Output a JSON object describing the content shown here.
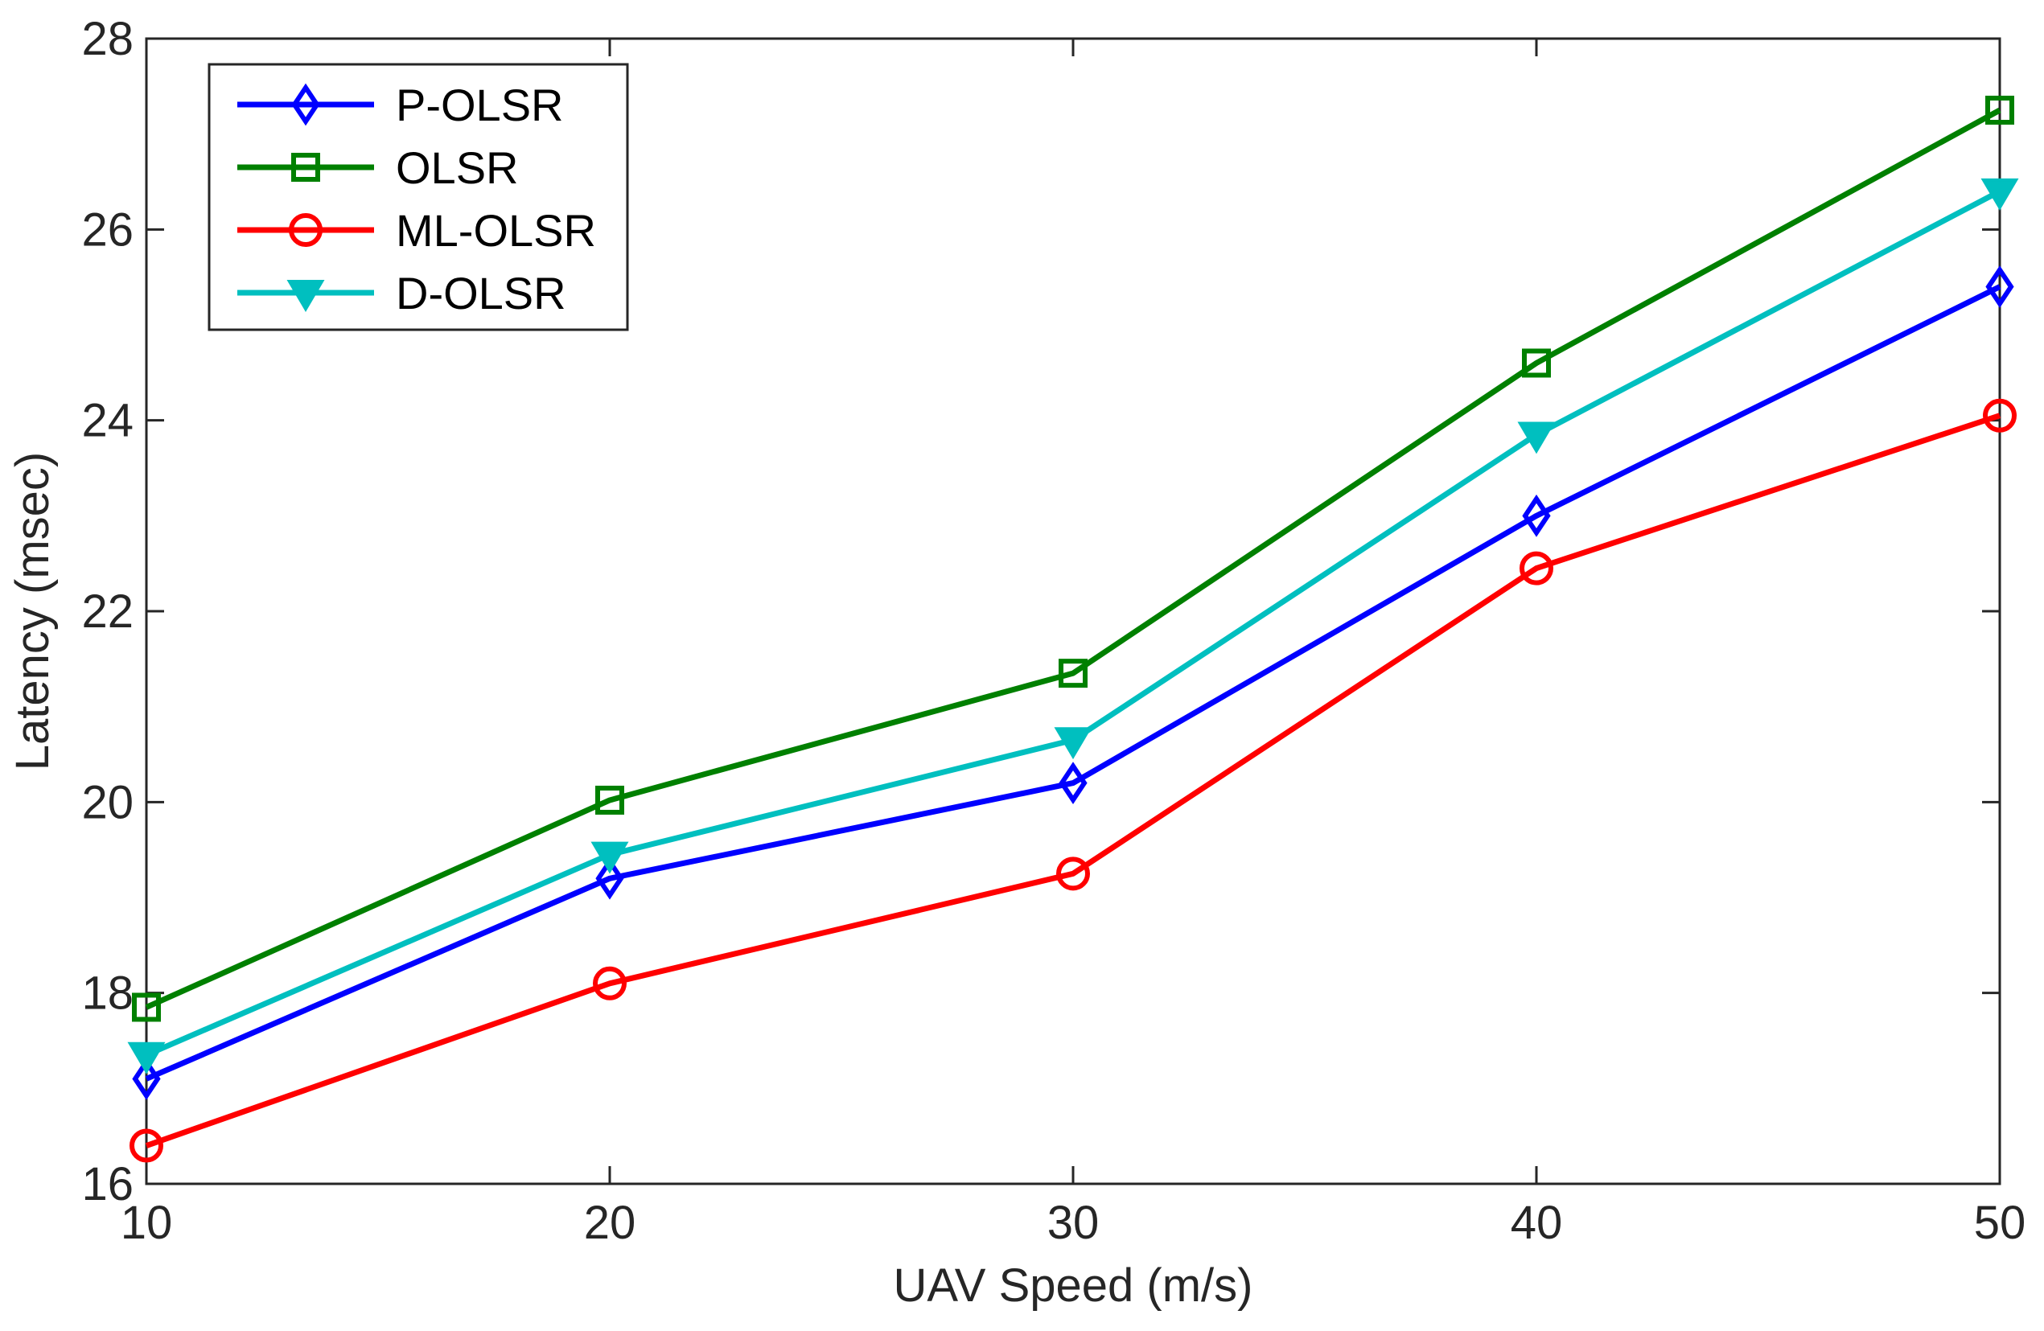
{
  "chart_data": {
    "type": "line",
    "title": "",
    "xlabel": "UAV Speed (m/s)",
    "ylabel": "Latency (msec)",
    "x": [
      10,
      20,
      30,
      40,
      50
    ],
    "xlim": [
      10,
      50
    ],
    "ylim": [
      16,
      28
    ],
    "xticks": [
      "10",
      "20",
      "30",
      "40",
      "50"
    ],
    "yticks": [
      "16",
      "18",
      "20",
      "22",
      "24",
      "26",
      "28"
    ],
    "grid": false,
    "legend_position": "top-left",
    "series": [
      {
        "name": "P-OLSR",
        "color": "#0000ff",
        "marker": "diamond",
        "values": [
          17.1,
          19.2,
          20.2,
          23.0,
          25.4
        ]
      },
      {
        "name": "OLSR",
        "color": "#008000",
        "marker": "square",
        "values": [
          17.85,
          20.02,
          21.35,
          24.6,
          27.25
        ]
      },
      {
        "name": "ML-OLSR",
        "color": "#ff0000",
        "marker": "circle",
        "values": [
          16.4,
          18.1,
          19.25,
          22.45,
          24.05
        ]
      },
      {
        "name": "D-OLSR",
        "color": "#00bfbf",
        "marker": "triangle-down",
        "values": [
          17.35,
          19.45,
          20.65,
          23.85,
          26.4
        ]
      }
    ]
  }
}
